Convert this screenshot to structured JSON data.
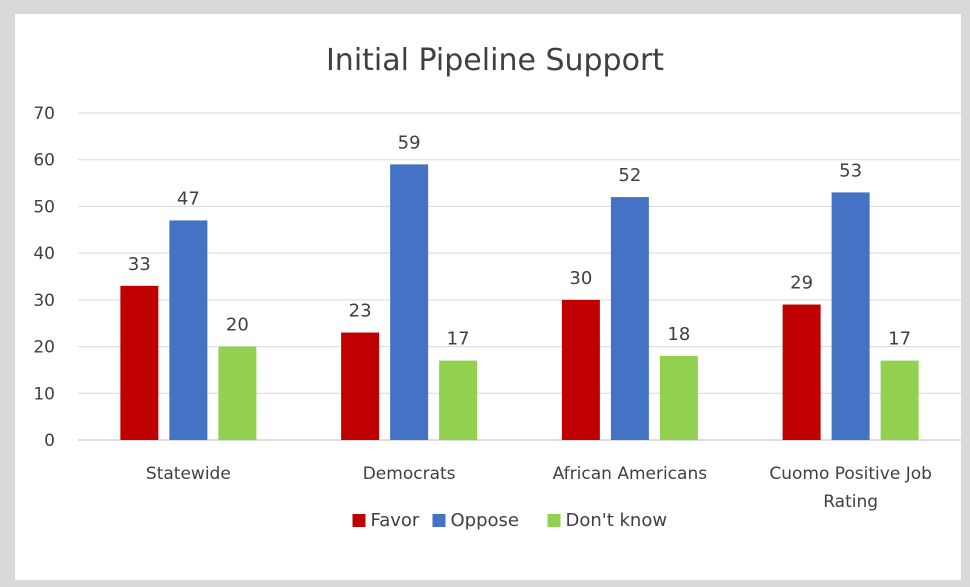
{
  "chart_data": {
    "type": "bar",
    "title": "Initial Pipeline Support",
    "xlabel": "",
    "ylabel": "",
    "categories": [
      "Statewide",
      "Democrats",
      "African Americans",
      "Cuomo Positive Job Rating"
    ],
    "series": [
      {
        "name": "Favor",
        "color": "#c00000",
        "values": [
          33,
          23,
          30,
          29
        ]
      },
      {
        "name": "Oppose",
        "color": "#4472c4",
        "values": [
          47,
          59,
          52,
          53
        ]
      },
      {
        "name": "Don't know",
        "color": "#92d050",
        "values": [
          20,
          17,
          18,
          17
        ]
      }
    ],
    "ylim": [
      0,
      70
    ],
    "yticks": [
      0,
      10,
      20,
      30,
      40,
      50,
      60,
      70
    ],
    "grid": true,
    "legend_position": "bottom",
    "data_labels": true
  }
}
